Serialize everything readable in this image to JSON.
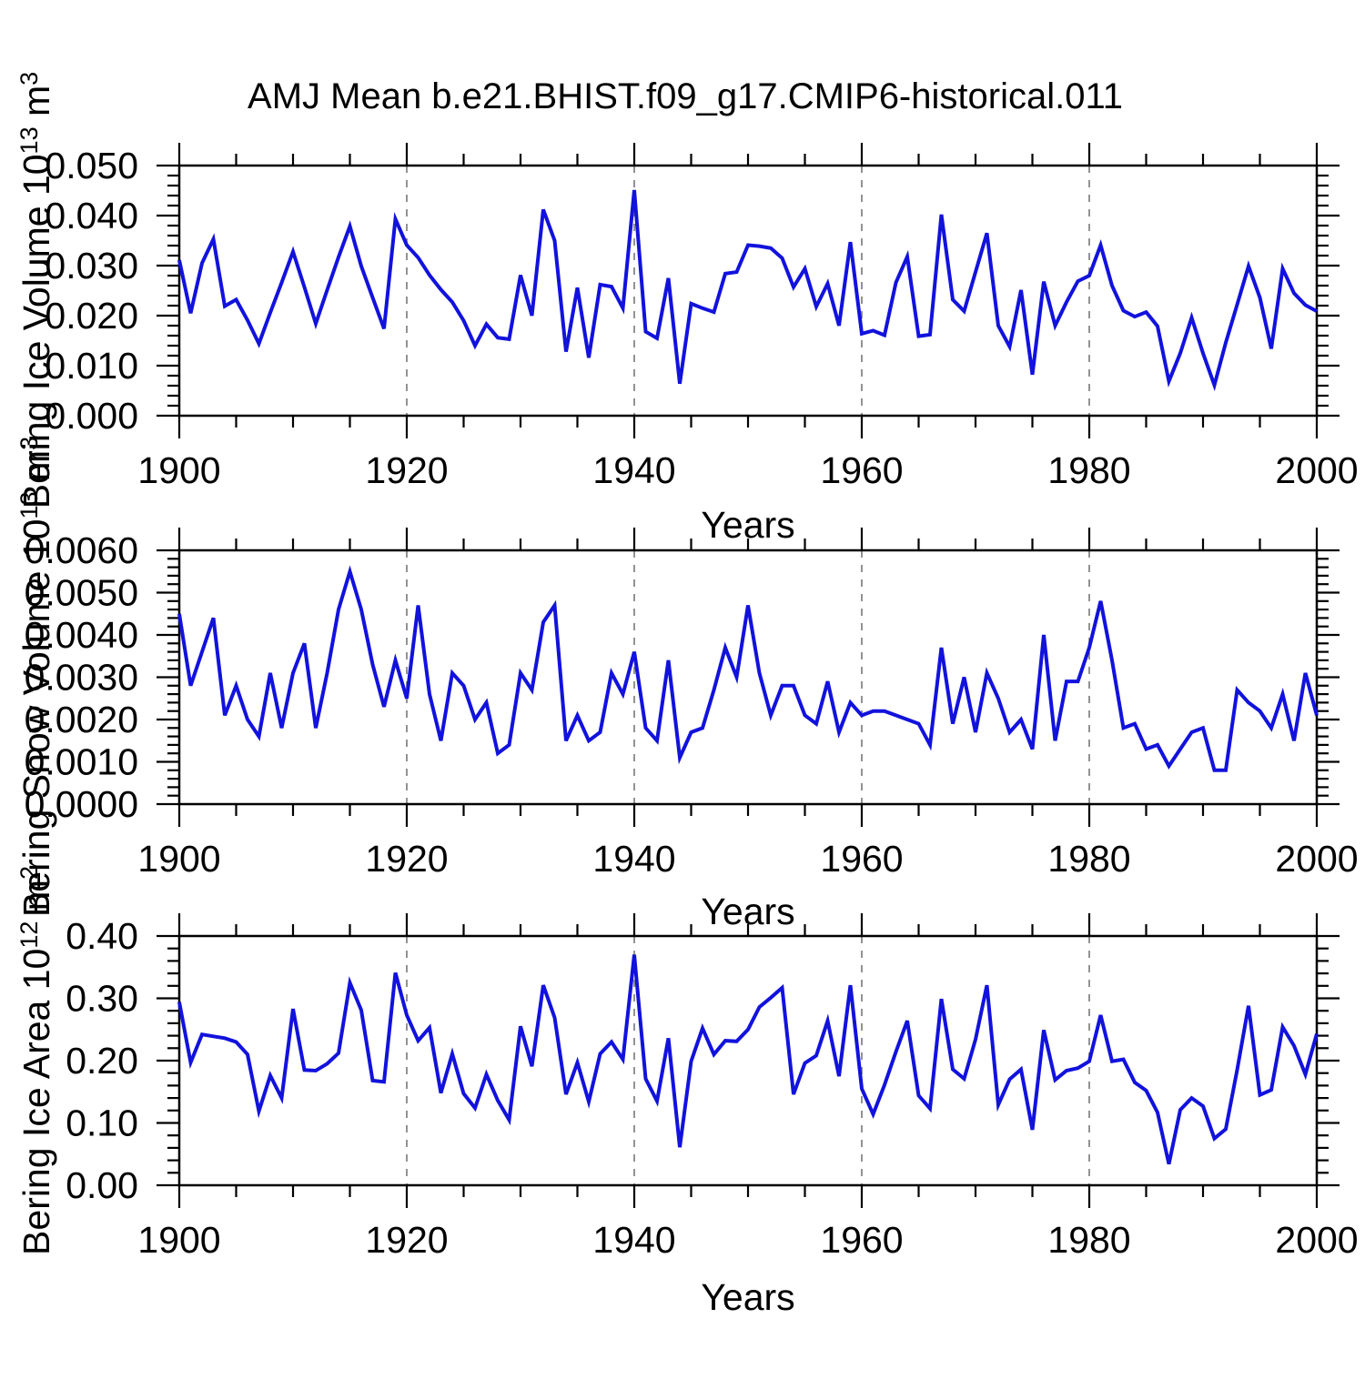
{
  "title": "AMJ Mean b.e21.BHIST.f09_g17.CMIP6-historical.011",
  "chart_data": [
    {
      "type": "line",
      "series_name": "Bering Ice Volume",
      "xlabel": "Years",
      "ylabel_parts": [
        "Bering Ice Volume 10",
        "13",
        " m",
        "3"
      ],
      "x_start": 1900,
      "x_end": 2000,
      "x_tick_labels": [
        "1900",
        "1920",
        "1940",
        "1960",
        "1980",
        "2000"
      ],
      "x_major_step": 20,
      "x_minor_step": 5,
      "grid_years": [
        1920,
        1940,
        1960,
        1980
      ],
      "ylim": [
        0,
        0.05
      ],
      "y_major_step": 0.01,
      "y_minor_step": 0.002,
      "y_tick_labels": [
        "0.000",
        "0.010",
        "0.020",
        "0.030",
        "0.040",
        "0.050"
      ],
      "line_color": "#1212dd",
      "values": [
        0.0311,
        0.0205,
        0.0305,
        0.0353,
        0.0219,
        0.0232,
        0.0191,
        0.0144,
        0.0206,
        0.0266,
        0.0328,
        0.0257,
        0.0184,
        0.0251,
        0.0317,
        0.0379,
        0.0299,
        0.0236,
        0.0174,
        0.0393,
        0.0341,
        0.0316,
        0.0281,
        0.0252,
        0.0227,
        0.019,
        0.014,
        0.0183,
        0.0156,
        0.0153,
        0.0281,
        0.02,
        0.0412,
        0.035,
        0.0128,
        0.0256,
        0.0116,
        0.0262,
        0.0258,
        0.0215,
        0.0451,
        0.0168,
        0.0155,
        0.0275,
        0.0064,
        0.0224,
        0.0215,
        0.0207,
        0.0284,
        0.0287,
        0.0341,
        0.0339,
        0.0335,
        0.0315,
        0.0257,
        0.0294,
        0.0218,
        0.0264,
        0.018,
        0.0347,
        0.0164,
        0.017,
        0.0161,
        0.0266,
        0.0318,
        0.0159,
        0.0162,
        0.0402,
        0.0232,
        0.0209,
        0.0287,
        0.0365,
        0.018,
        0.0138,
        0.0251,
        0.0082,
        0.0268,
        0.018,
        0.0227,
        0.0269,
        0.028,
        0.0341,
        0.026,
        0.021,
        0.0198,
        0.0207,
        0.0179,
        0.0069,
        0.0125,
        0.0196,
        0.0125,
        0.0061,
        0.0146,
        0.0222,
        0.0299,
        0.0236,
        0.0134,
        0.0294,
        0.0245,
        0.0221,
        0.0209
      ]
    },
    {
      "type": "line",
      "series_name": "Bering Snow Volume",
      "xlabel": "Years",
      "ylabel_parts": [
        "Bering Snow Volume 10",
        "13",
        " m",
        "3"
      ],
      "x_start": 1900,
      "x_end": 2000,
      "x_tick_labels": [
        "1900",
        "1920",
        "1940",
        "1960",
        "1980",
        "2000"
      ],
      "x_major_step": 20,
      "x_minor_step": 5,
      "grid_years": [
        1920,
        1940,
        1960,
        1980
      ],
      "ylim": [
        0,
        0.006
      ],
      "y_major_step": 0.001,
      "y_minor_step": 0.0002,
      "y_tick_labels": [
        "0.0000",
        "0.0010",
        "0.0020",
        "0.0030",
        "0.0040",
        "0.0050",
        "0.0060"
      ],
      "line_color": "#1212dd",
      "values": [
        0.0045,
        0.0028,
        0.0036,
        0.0044,
        0.0021,
        0.0028,
        0.002,
        0.0016,
        0.0031,
        0.0018,
        0.0031,
        0.0038,
        0.0018,
        0.0031,
        0.0046,
        0.0055,
        0.0046,
        0.0033,
        0.0023,
        0.0034,
        0.0025,
        0.0047,
        0.0026,
        0.0015,
        0.0031,
        0.0028,
        0.002,
        0.0024,
        0.0012,
        0.0014,
        0.0031,
        0.0027,
        0.0043,
        0.0047,
        0.0015,
        0.0021,
        0.0015,
        0.0017,
        0.0031,
        0.0026,
        0.0036,
        0.0018,
        0.0015,
        0.0034,
        0.0011,
        0.0017,
        0.0018,
        0.0027,
        0.0037,
        0.003,
        0.0047,
        0.0031,
        0.0021,
        0.0028,
        0.0028,
        0.0021,
        0.0019,
        0.0029,
        0.0017,
        0.0024,
        0.0021,
        0.0022,
        0.0022,
        0.0021,
        0.002,
        0.0019,
        0.0014,
        0.0037,
        0.0019,
        0.003,
        0.0017,
        0.0031,
        0.0025,
        0.0017,
        0.002,
        0.0013,
        0.004,
        0.0015,
        0.0029,
        0.0029,
        0.0037,
        0.0048,
        0.0034,
        0.0018,
        0.0019,
        0.0013,
        0.0014,
        0.0009,
        0.0013,
        0.0017,
        0.0018,
        0.0008,
        0.0008,
        0.0027,
        0.0024,
        0.0022,
        0.0018,
        0.0026,
        0.0015,
        0.0031,
        0.0021
      ]
    },
    {
      "type": "line",
      "series_name": "Bering Ice Area",
      "xlabel": "Years",
      "ylabel_parts": [
        "Bering Ice Area 10",
        "12",
        " m",
        "2"
      ],
      "x_start": 1900,
      "x_end": 2000,
      "x_tick_labels": [
        "1900",
        "1920",
        "1940",
        "1960",
        "1980",
        "2000"
      ],
      "x_major_step": 20,
      "x_minor_step": 5,
      "grid_years": [
        1920,
        1940,
        1960,
        1980
      ],
      "ylim": [
        0,
        0.4
      ],
      "y_major_step": 0.1,
      "y_minor_step": 0.02,
      "y_tick_labels": [
        "0.00",
        "0.10",
        "0.20",
        "0.30",
        "0.40"
      ],
      "line_color": "#1212dd",
      "values": [
        0.294,
        0.197,
        0.242,
        0.239,
        0.236,
        0.23,
        0.21,
        0.119,
        0.176,
        0.14,
        0.283,
        0.185,
        0.184,
        0.195,
        0.212,
        0.325,
        0.281,
        0.168,
        0.166,
        0.341,
        0.273,
        0.232,
        0.253,
        0.148,
        0.211,
        0.147,
        0.124,
        0.178,
        0.136,
        0.105,
        0.255,
        0.191,
        0.321,
        0.269,
        0.146,
        0.197,
        0.134,
        0.211,
        0.23,
        0.202,
        0.37,
        0.171,
        0.135,
        0.236,
        0.061,
        0.199,
        0.252,
        0.21,
        0.232,
        0.231,
        0.25,
        0.286,
        0.301,
        0.317,
        0.146,
        0.196,
        0.208,
        0.264,
        0.175,
        0.321,
        0.155,
        0.114,
        0.161,
        0.214,
        0.264,
        0.144,
        0.123,
        0.299,
        0.186,
        0.171,
        0.234,
        0.321,
        0.129,
        0.17,
        0.186,
        0.089,
        0.249,
        0.169,
        0.184,
        0.188,
        0.199,
        0.273,
        0.199,
        0.202,
        0.165,
        0.152,
        0.117,
        0.034,
        0.121,
        0.14,
        0.127,
        0.075,
        0.09,
        0.185,
        0.288,
        0.145,
        0.153,
        0.254,
        0.224,
        0.178,
        0.243
      ]
    }
  ]
}
